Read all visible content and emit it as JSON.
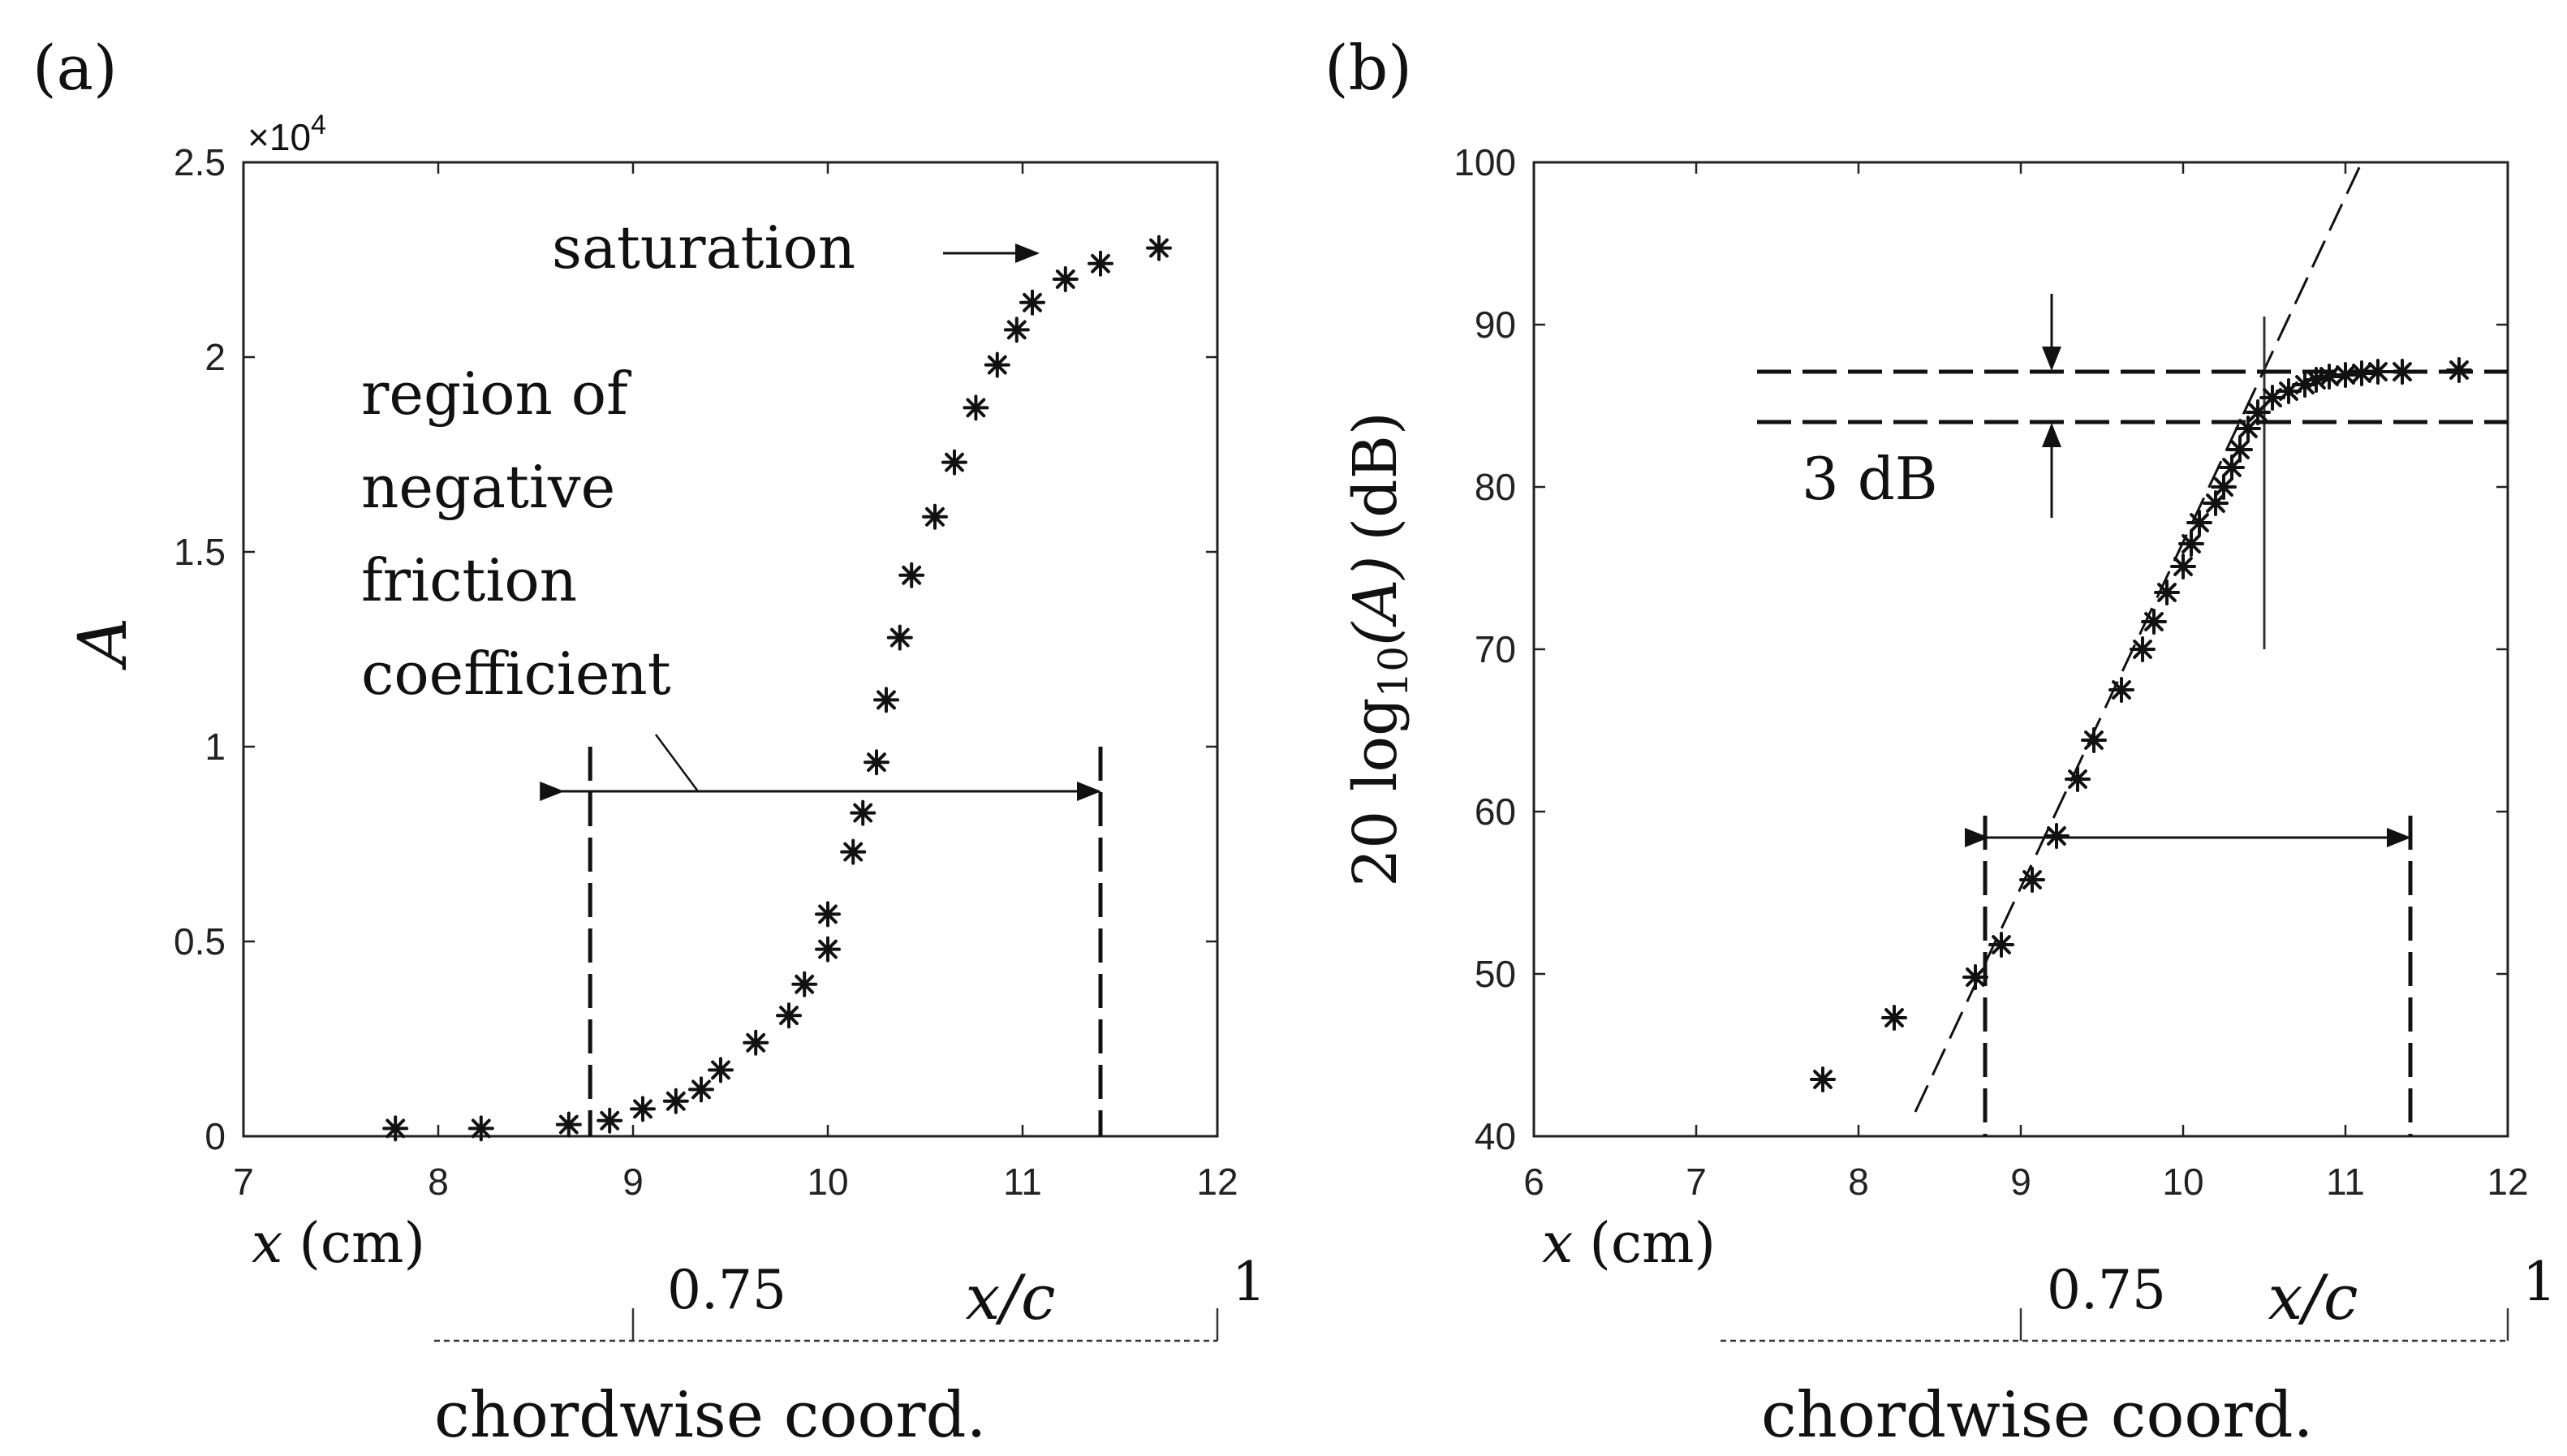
{
  "colors": {
    "ink": "#111111",
    "axis": "#222222",
    "background": "#ffffff"
  },
  "chart_data": [
    {
      "type": "scatter",
      "panel_label": "(a)",
      "xlabel": {
        "var": "x",
        "unit": "(cm)"
      },
      "ylabel": "A",
      "exponent_label": "×10",
      "exponent_power": "4",
      "xlim": [
        7,
        12
      ],
      "ylim": [
        0,
        25000
      ],
      "xticks": [
        7,
        8,
        9,
        10,
        11,
        12
      ],
      "xtick_labels": [
        "7",
        "8",
        "9",
        "10",
        "11",
        "12"
      ],
      "yticks": [
        0,
        5000,
        10000,
        15000,
        20000,
        25000
      ],
      "ytick_labels": [
        "0",
        "0.5",
        "1",
        "1.5",
        "2",
        "2.5"
      ],
      "marker": "*",
      "series": [
        {
          "name": "A",
          "x": [
            7.78,
            8.22,
            8.67,
            8.88,
            9.05,
            9.22,
            9.35,
            9.45,
            9.63,
            9.8,
            9.88,
            10.0,
            10.0,
            10.13,
            10.18,
            10.25,
            10.3,
            10.37,
            10.43,
            10.55,
            10.65,
            10.76,
            10.87,
            10.97,
            11.05,
            11.22,
            11.4,
            11.7
          ],
          "y": [
            200,
            200,
            300,
            400,
            700,
            900,
            1200,
            1700,
            2400,
            3100,
            3900,
            4800,
            5700,
            7300,
            8300,
            9600,
            11200,
            12800,
            14400,
            15900,
            17300,
            18700,
            19800,
            20700,
            21400,
            22000,
            22400,
            22800
          ]
        }
      ],
      "annotations": {
        "saturation": "saturation",
        "negative_friction_lines": [
          "region of",
          "negative",
          "friction",
          "coefficient"
        ],
        "region_x": [
          8.78,
          11.4
        ]
      },
      "secondary_axis": {
        "label_var": "x/c",
        "caption": "chordwise coord.",
        "tick_labels": [
          "0.75",
          "1"
        ],
        "tick_x_cm": [
          9.0,
          12.0
        ]
      }
    },
    {
      "type": "scatter",
      "panel_label": "(b)",
      "xlabel": {
        "var": "x",
        "unit": "(cm)"
      },
      "ylabel": {
        "prefix": "20 log",
        "subscript": "10",
        "arg": "(A)",
        "unit": "(dB)"
      },
      "xlim": [
        6,
        12
      ],
      "ylim": [
        40,
        100
      ],
      "xticks": [
        6,
        7,
        8,
        9,
        10,
        11,
        12
      ],
      "xtick_labels": [
        "6",
        "7",
        "8",
        "9",
        "10",
        "11",
        "12"
      ],
      "yticks": [
        40,
        50,
        60,
        70,
        80,
        90,
        100
      ],
      "ytick_labels": [
        "40",
        "50",
        "60",
        "70",
        "80",
        "90",
        "100"
      ],
      "marker": "*",
      "series": [
        {
          "name": "20log10(A)",
          "x": [
            7.78,
            8.22,
            8.72,
            8.88,
            9.07,
            9.22,
            9.35,
            9.45,
            9.62,
            9.75,
            9.82,
            9.9,
            10.0,
            10.05,
            10.1,
            10.2,
            10.25,
            10.3,
            10.35,
            10.4,
            10.46,
            10.55,
            10.65,
            10.75,
            10.82,
            10.9,
            11.0,
            11.1,
            11.2,
            11.35,
            11.7
          ],
          "y": [
            43.5,
            47.3,
            49.8,
            51.8,
            55.8,
            58.5,
            62,
            64.4,
            67.5,
            70,
            71.7,
            73.5,
            75.1,
            76.5,
            77.8,
            79,
            80,
            81.2,
            82.3,
            83.6,
            84.6,
            85.5,
            85.9,
            86.3,
            86.6,
            86.8,
            86.9,
            87,
            87.1,
            87.1,
            87.2
          ]
        }
      ],
      "annotations": {
        "db_label": "3 dB",
        "db_lines": [
          87.1,
          84.0
        ],
        "vertical_line_x": 10.5,
        "fit_line": {
          "x": [
            8.35,
            11.1
          ],
          "y": [
            41.5,
            100
          ]
        },
        "region_x": [
          8.78,
          11.4
        ]
      },
      "secondary_axis": {
        "label_var": "x/c",
        "caption": "chordwise coord.",
        "tick_labels": [
          "0.75",
          "1"
        ],
        "tick_x_cm": [
          9.0,
          12.0
        ]
      }
    }
  ]
}
